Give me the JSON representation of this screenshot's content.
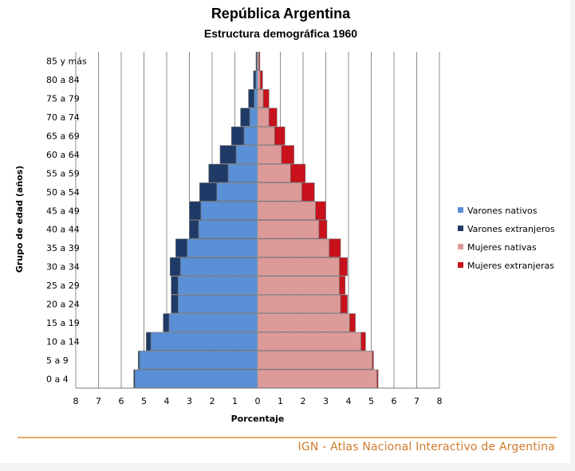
{
  "chart_data": {
    "type": "bar",
    "orientation": "horizontal-population-pyramid",
    "title": "República Argentina",
    "subtitle": "Estructura demográfica 1960",
    "xlabel": "Porcentaje",
    "ylabel": "Grupo de edad (años)",
    "xlim": [
      -8,
      8
    ],
    "x_ticks": [
      "8",
      "7",
      "6",
      "5",
      "4",
      "3",
      "2",
      "1",
      "0",
      "1",
      "2",
      "3",
      "4",
      "5",
      "6",
      "7",
      "8"
    ],
    "grid": "vertical",
    "legend_position": "right",
    "categories": [
      "0 a 4",
      "5 a 9",
      "10 a 14",
      "15 a 19",
      "20 a 24",
      "25 a 29",
      "30 a 34",
      "35 a 39",
      "40 a 44",
      "45 a 49",
      "50 a 54",
      "55 a 59",
      "60 a 64",
      "65 a 69",
      "70 a 74",
      "75 a 79",
      "80 a 84",
      "85 y más"
    ],
    "series": [
      {
        "name": "Varones nativos",
        "side": "left",
        "color": "#5b8fd6",
        "values": [
          5.4,
          5.2,
          4.7,
          3.9,
          3.5,
          3.5,
          3.4,
          3.1,
          2.6,
          2.5,
          1.8,
          1.3,
          0.95,
          0.6,
          0.35,
          0.15,
          0.08,
          0.03
        ]
      },
      {
        "name": "Varones extranjeros",
        "side": "left",
        "color": "#1f3a66",
        "values": [
          0.05,
          0.05,
          0.2,
          0.25,
          0.3,
          0.3,
          0.45,
          0.5,
          0.4,
          0.5,
          0.75,
          0.85,
          0.7,
          0.55,
          0.4,
          0.25,
          0.1,
          0.04
        ]
      },
      {
        "name": "Mujeres nativas",
        "side": "right",
        "color": "#dc9a98",
        "values": [
          5.25,
          5.05,
          4.55,
          4.05,
          3.65,
          3.6,
          3.6,
          3.15,
          2.7,
          2.55,
          1.95,
          1.45,
          1.05,
          0.75,
          0.5,
          0.25,
          0.12,
          0.06
        ]
      },
      {
        "name": "Mujeres extranjeras",
        "side": "right",
        "color": "#c8111b",
        "values": [
          0.05,
          0.05,
          0.2,
          0.25,
          0.3,
          0.25,
          0.35,
          0.5,
          0.35,
          0.45,
          0.55,
          0.65,
          0.55,
          0.45,
          0.35,
          0.25,
          0.1,
          0.04
        ]
      }
    ]
  },
  "footer": {
    "credit": "IGN - Atlas Nacional Interactivo de Argentina"
  }
}
